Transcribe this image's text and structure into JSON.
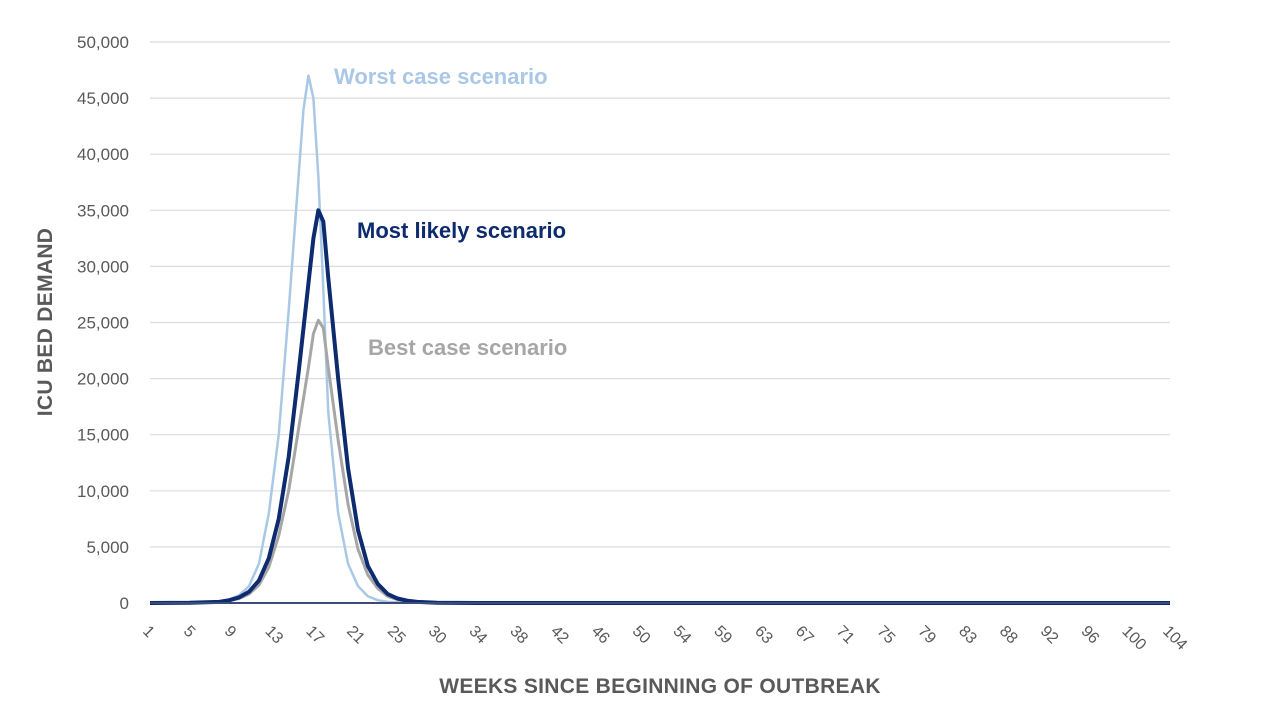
{
  "chart_data": {
    "type": "line",
    "title": "",
    "xlabel": "WEEKS SINCE BEGINNING OF OUTBREAK",
    "ylabel": "ICU BED DEMAND",
    "ylim": [
      0,
      50000
    ],
    "xlim": [
      1,
      104
    ],
    "grid": true,
    "legend": "inline labels",
    "y_ticks": [
      0,
      5000,
      10000,
      15000,
      20000,
      25000,
      30000,
      35000,
      40000,
      45000,
      50000
    ],
    "y_tick_labels": [
      "0",
      "5,000",
      "10,000",
      "15,000",
      "20,000",
      "25,000",
      "30,000",
      "35,000",
      "40,000",
      "45,000",
      "50,000"
    ],
    "x_tick_labels": [
      "1",
      "5",
      "9",
      "13",
      "17",
      "21",
      "25",
      "30",
      "34",
      "38",
      "42",
      "46",
      "50",
      "54",
      "59",
      "63",
      "67",
      "71",
      "75",
      "79",
      "83",
      "88",
      "92",
      "96",
      "100",
      "104"
    ],
    "series": [
      {
        "name": "Worst case scenario",
        "color": "#a9c8e6",
        "x": [
          1,
          5,
          8,
          9,
          10,
          11,
          12,
          13,
          14,
          15,
          16,
          16.5,
          17,
          17.5,
          18,
          18.5,
          19,
          20,
          21,
          22,
          23,
          24,
          25,
          27,
          30,
          34,
          38,
          104
        ],
        "y": [
          0,
          30,
          150,
          300,
          700,
          1500,
          3500,
          8000,
          15000,
          26000,
          38000,
          44000,
          47000,
          45000,
          38000,
          28000,
          17000,
          8000,
          3500,
          1500,
          600,
          250,
          100,
          30,
          0,
          0,
          0,
          0
        ]
      },
      {
        "name": "Most likely scenario",
        "color": "#0d2b6e",
        "x": [
          1,
          5,
          8,
          9,
          10,
          11,
          12,
          13,
          14,
          15,
          16,
          17,
          17.5,
          18,
          18.5,
          19,
          20,
          21,
          22,
          23,
          24,
          25,
          26,
          27,
          28,
          30,
          34,
          38,
          104
        ],
        "y": [
          0,
          20,
          100,
          250,
          500,
          1000,
          2000,
          4000,
          7500,
          13000,
          20500,
          28500,
          32500,
          35000,
          34000,
          29000,
          20000,
          12000,
          6500,
          3300,
          1700,
          800,
          400,
          200,
          100,
          20,
          0,
          0,
          0
        ]
      },
      {
        "name": "Best case scenario",
        "color": "#a6a6a6",
        "x": [
          1,
          5,
          8,
          9,
          10,
          11,
          12,
          13,
          14,
          15,
          16,
          17,
          17.5,
          18,
          18.5,
          19,
          20,
          21,
          22,
          23,
          24,
          25,
          26,
          27,
          28,
          30,
          34,
          38,
          104
        ],
        "y": [
          0,
          15,
          80,
          200,
          400,
          800,
          1600,
          3200,
          6000,
          10000,
          15500,
          21000,
          24000,
          25200,
          24500,
          21000,
          14500,
          8800,
          4800,
          2500,
          1300,
          600,
          300,
          150,
          70,
          15,
          0,
          0,
          0
        ]
      }
    ]
  }
}
